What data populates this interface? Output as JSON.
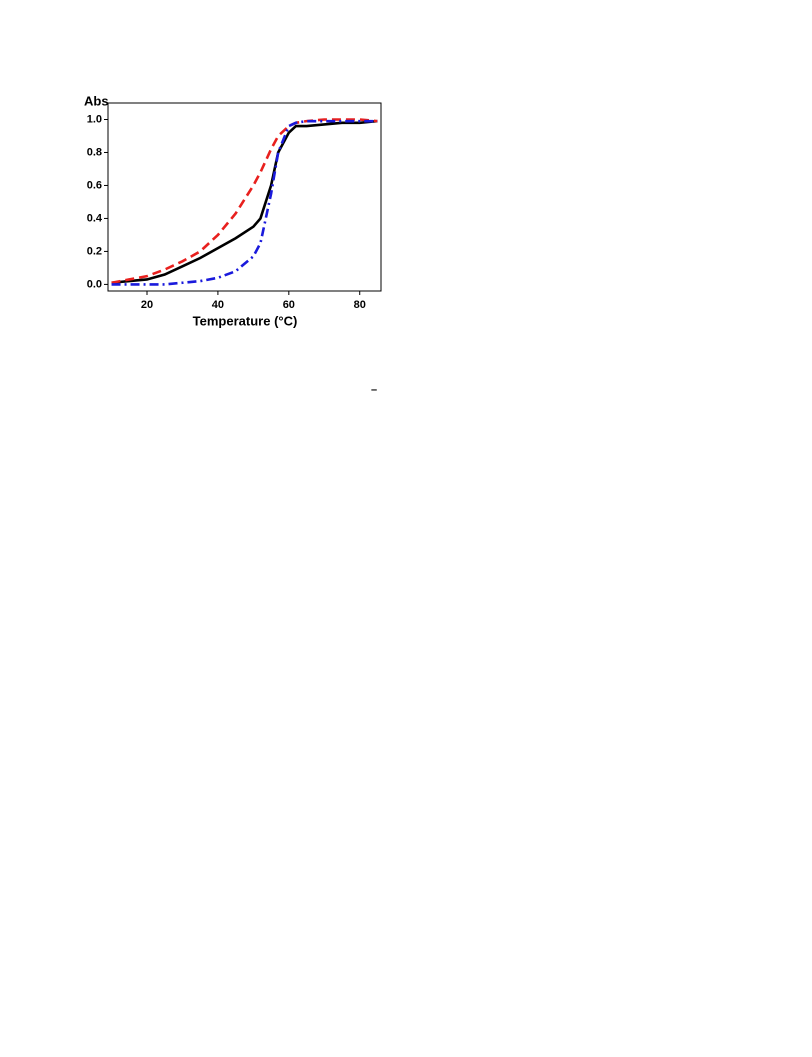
{
  "chart_data": {
    "type": "line",
    "ylabel": "Abs",
    "xlabel": "Temperature (°C)",
    "annotation": "–",
    "x": [
      10,
      15,
      20,
      25,
      30,
      35,
      40,
      45,
      50,
      52,
      55,
      57,
      60,
      62,
      65,
      70,
      75,
      80,
      85
    ],
    "series": [
      {
        "color": "#000000",
        "dash": "solid",
        "values": [
          0.01,
          0.02,
          0.03,
          0.06,
          0.11,
          0.16,
          0.22,
          0.28,
          0.35,
          0.4,
          0.6,
          0.8,
          0.92,
          0.96,
          0.96,
          0.97,
          0.98,
          0.98,
          0.99
        ]
      },
      {
        "color": "#e8201e",
        "dash": "dashed",
        "values": [
          0.01,
          0.03,
          0.05,
          0.09,
          0.14,
          0.2,
          0.3,
          0.43,
          0.6,
          0.68,
          0.82,
          0.9,
          0.96,
          0.98,
          0.99,
          1.0,
          1.0,
          1.0,
          0.99
        ]
      },
      {
        "color": "#1a1adc",
        "dash": "dashdot",
        "values": [
          0,
          0,
          0,
          0,
          0.01,
          0.02,
          0.04,
          0.08,
          0.17,
          0.25,
          0.55,
          0.8,
          0.96,
          0.98,
          0.99,
          0.99,
          0.99,
          0.99,
          0.99
        ]
      }
    ],
    "xlim": [
      9,
      86
    ],
    "ylim": [
      -0.04,
      1.1
    ],
    "xticks": [
      20,
      40,
      60,
      80
    ],
    "yticks": [
      {
        "value": 0,
        "label": "0.0"
      },
      0.2,
      0.4,
      0.6,
      0.8,
      {
        "value": 1,
        "label": "1.0"
      }
    ]
  }
}
